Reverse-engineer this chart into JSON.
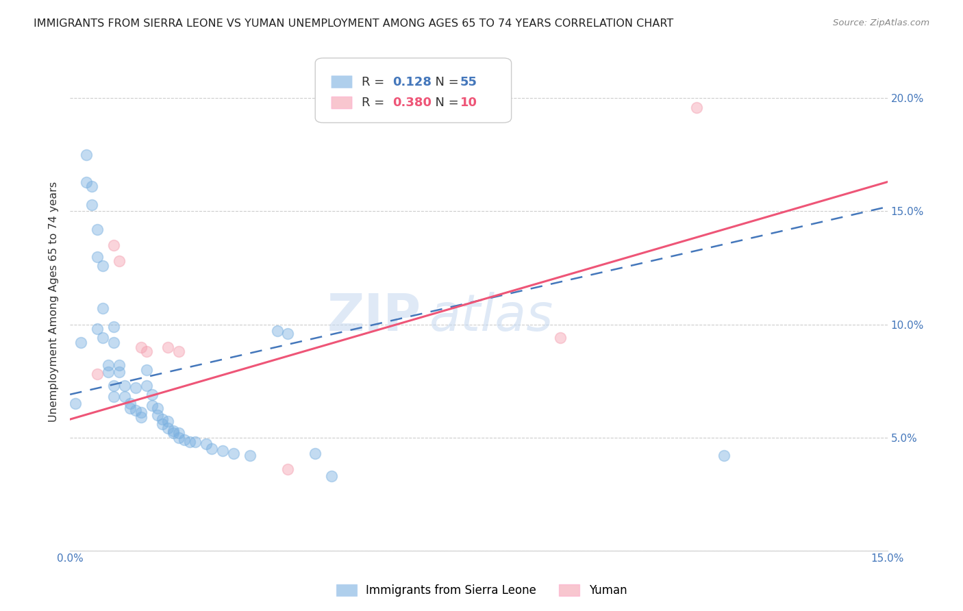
{
  "title": "IMMIGRANTS FROM SIERRA LEONE VS YUMAN UNEMPLOYMENT AMONG AGES 65 TO 74 YEARS CORRELATION CHART",
  "source": "Source: ZipAtlas.com",
  "ylabel": "Unemployment Among Ages 65 to 74 years",
  "xlim": [
    0.0,
    0.15
  ],
  "ylim": [
    0.0,
    0.22
  ],
  "xticks": [
    0.0,
    0.025,
    0.05,
    0.075,
    0.1,
    0.125,
    0.15
  ],
  "yticks": [
    0.0,
    0.05,
    0.1,
    0.15,
    0.2
  ],
  "blue_color": "#7ab0e0",
  "pink_color": "#f4a0b0",
  "line_blue_color": "#4477bb",
  "line_pink_color": "#ee5577",
  "watermark_zip": "ZIP",
  "watermark_atlas": "atlas",
  "blue_scatter": [
    [
      0.001,
      0.065
    ],
    [
      0.002,
      0.092
    ],
    [
      0.003,
      0.175
    ],
    [
      0.003,
      0.163
    ],
    [
      0.004,
      0.161
    ],
    [
      0.004,
      0.153
    ],
    [
      0.005,
      0.142
    ],
    [
      0.005,
      0.13
    ],
    [
      0.005,
      0.098
    ],
    [
      0.006,
      0.126
    ],
    [
      0.006,
      0.107
    ],
    [
      0.006,
      0.094
    ],
    [
      0.007,
      0.082
    ],
    [
      0.007,
      0.079
    ],
    [
      0.008,
      0.099
    ],
    [
      0.008,
      0.092
    ],
    [
      0.008,
      0.073
    ],
    [
      0.008,
      0.068
    ],
    [
      0.009,
      0.082
    ],
    [
      0.009,
      0.079
    ],
    [
      0.01,
      0.073
    ],
    [
      0.01,
      0.068
    ],
    [
      0.011,
      0.065
    ],
    [
      0.011,
      0.063
    ],
    [
      0.012,
      0.072
    ],
    [
      0.012,
      0.062
    ],
    [
      0.013,
      0.061
    ],
    [
      0.013,
      0.059
    ],
    [
      0.014,
      0.08
    ],
    [
      0.014,
      0.073
    ],
    [
      0.015,
      0.069
    ],
    [
      0.015,
      0.064
    ],
    [
      0.016,
      0.063
    ],
    [
      0.016,
      0.06
    ],
    [
      0.017,
      0.058
    ],
    [
      0.017,
      0.056
    ],
    [
      0.018,
      0.057
    ],
    [
      0.018,
      0.054
    ],
    [
      0.019,
      0.053
    ],
    [
      0.019,
      0.052
    ],
    [
      0.02,
      0.052
    ],
    [
      0.02,
      0.05
    ],
    [
      0.021,
      0.049
    ],
    [
      0.022,
      0.048
    ],
    [
      0.023,
      0.048
    ],
    [
      0.025,
      0.047
    ],
    [
      0.026,
      0.045
    ],
    [
      0.028,
      0.044
    ],
    [
      0.03,
      0.043
    ],
    [
      0.033,
      0.042
    ],
    [
      0.038,
      0.097
    ],
    [
      0.04,
      0.096
    ],
    [
      0.045,
      0.043
    ],
    [
      0.048,
      0.033
    ],
    [
      0.12,
      0.042
    ]
  ],
  "pink_scatter": [
    [
      0.005,
      0.078
    ],
    [
      0.008,
      0.135
    ],
    [
      0.009,
      0.128
    ],
    [
      0.013,
      0.09
    ],
    [
      0.014,
      0.088
    ],
    [
      0.018,
      0.09
    ],
    [
      0.02,
      0.088
    ],
    [
      0.04,
      0.036
    ],
    [
      0.09,
      0.094
    ],
    [
      0.115,
      0.196
    ]
  ],
  "blue_line_x": [
    0.0,
    0.15
  ],
  "blue_line_y": [
    0.069,
    0.152
  ],
  "pink_line_x": [
    0.0,
    0.15
  ],
  "pink_line_y": [
    0.058,
    0.163
  ]
}
